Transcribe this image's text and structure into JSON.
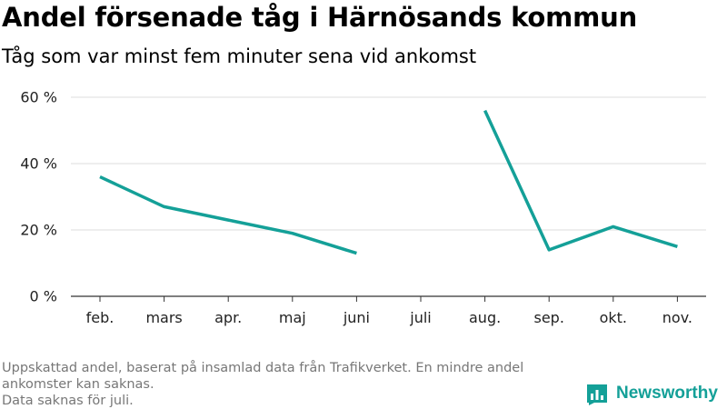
{
  "title": "Andel försenade tåg i Härnösands kommun",
  "subtitle": "Tåg som var minst fem minuter sena vid ankomst",
  "note_lines": [
    "Uppskattad andel, baserat på insamlad data från Trafikverket. En mindre andel ankomster kan saknas.",
    "Data saknas för juli."
  ],
  "logo": {
    "text": "Newsworthy",
    "icon": "newsworthy-bar-chart-icon",
    "color": "#14a098"
  },
  "chart_data": {
    "type": "line",
    "categories": [
      "feb.",
      "mars",
      "apr.",
      "maj",
      "juni",
      "juli",
      "aug.",
      "sep.",
      "okt.",
      "nov."
    ],
    "series": [
      {
        "values": [
          36,
          27,
          23,
          19,
          13,
          null,
          56,
          14,
          21,
          15
        ],
        "color": "#14a098"
      }
    ],
    "yticks": [
      0,
      20,
      40,
      60
    ],
    "ytick_labels": [
      "0 %",
      "20 %",
      "40 %",
      "60 %"
    ],
    "ylim": [
      0,
      60
    ],
    "xlabel": "",
    "ylabel": "",
    "grid": true
  }
}
